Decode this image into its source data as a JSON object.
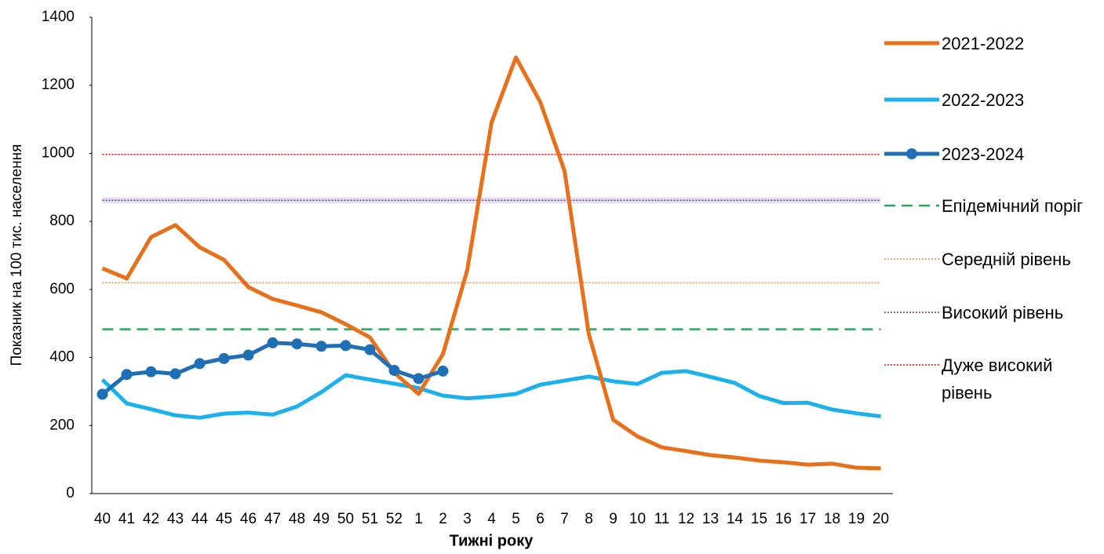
{
  "chart_data": {
    "type": "line",
    "x_label": "Тижні року",
    "y_label": "Показник на 100 тис. населення",
    "categories": [
      "40",
      "41",
      "42",
      "43",
      "44",
      "45",
      "46",
      "47",
      "48",
      "49",
      "50",
      "51",
      "52",
      "1",
      "2",
      "3",
      "4",
      "5",
      "6",
      "7",
      "8",
      "9",
      "10",
      "11",
      "12",
      "13",
      "14",
      "15",
      "16",
      "17",
      "18",
      "19",
      "20"
    ],
    "ylim": [
      0,
      1400
    ],
    "yticks": [
      0,
      200,
      400,
      600,
      800,
      1000,
      1200,
      1400
    ],
    "series": [
      {
        "name": "2021-2022",
        "color": "#e8701a",
        "line_width": 5,
        "dash": "solid",
        "values": [
          662,
          632,
          754,
          789,
          724,
          687,
          607,
          572,
          553,
          533,
          498,
          459,
          355,
          293,
          410,
          657,
          1091,
          1282,
          1151,
          948,
          468,
          217,
          168,
          136,
          125,
          113,
          106,
          97,
          92,
          85,
          88,
          76,
          74
        ]
      },
      {
        "name": "2022-2023",
        "color": "#1cb0ec",
        "line_width": 5,
        "dash": "solid",
        "values": [
          335,
          265,
          248,
          230,
          223,
          235,
          238,
          232,
          256,
          298,
          348,
          335,
          323,
          310,
          288,
          280,
          285,
          293,
          320,
          332,
          344,
          330,
          322,
          355,
          360,
          343,
          325,
          287,
          266,
          267,
          247,
          236,
          227
        ]
      },
      {
        "name": "2023-2024",
        "color": "#1f6fb5",
        "line_width": 5,
        "dash": "solid",
        "marker": "circle",
        "values": [
          292,
          350,
          358,
          352,
          382,
          397,
          407,
          443,
          440,
          433,
          435,
          423,
          362,
          338,
          360,
          null,
          null,
          null,
          null,
          null,
          null,
          null,
          null,
          null,
          null,
          null,
          null,
          null,
          null,
          null,
          null,
          null,
          null
        ]
      },
      {
        "name": "Епідемічний поріг",
        "color": "#27a65a",
        "line_width": 2.5,
        "dash": "dashed",
        "values": [
          483,
          483,
          483,
          483,
          483,
          483,
          483,
          483,
          483,
          483,
          483,
          483,
          483,
          483,
          483,
          483,
          483,
          483,
          483,
          483,
          483,
          483,
          483,
          483,
          483,
          483,
          483,
          483,
          483,
          483,
          483,
          483,
          483
        ]
      },
      {
        "name": "Середній рівень",
        "color": "#f08a3c",
        "line_width": 1.5,
        "dash": "dotted",
        "values": [
          620,
          620,
          620,
          620,
          620,
          620,
          620,
          620,
          620,
          620,
          620,
          620,
          620,
          620,
          620,
          620,
          620,
          620,
          620,
          620,
          620,
          620,
          620,
          620,
          620,
          620,
          620,
          620,
          620,
          620,
          620,
          620,
          620
        ]
      },
      {
        "name": "Високий рівень",
        "color": "#7030a0",
        "line_width": 1.5,
        "dash": "dotted",
        "values": [
          862,
          862,
          862,
          862,
          862,
          862,
          862,
          862,
          862,
          862,
          862,
          862,
          862,
          862,
          862,
          862,
          862,
          862,
          862,
          862,
          862,
          862,
          862,
          862,
          862,
          862,
          862,
          862,
          862,
          862,
          862,
          862,
          862
        ]
      },
      {
        "name": "Дуже високий рівень",
        "color": "#ff0000",
        "line_width": 1.5,
        "dash": "dotted",
        "values": [
          997,
          997,
          997,
          997,
          997,
          997,
          997,
          997,
          997,
          997,
          997,
          997,
          997,
          997,
          997,
          997,
          997,
          997,
          997,
          997,
          997,
          997,
          997,
          997,
          997,
          997,
          997,
          997,
          997,
          997,
          997,
          997,
          997
        ]
      }
    ],
    "legend": "right"
  }
}
